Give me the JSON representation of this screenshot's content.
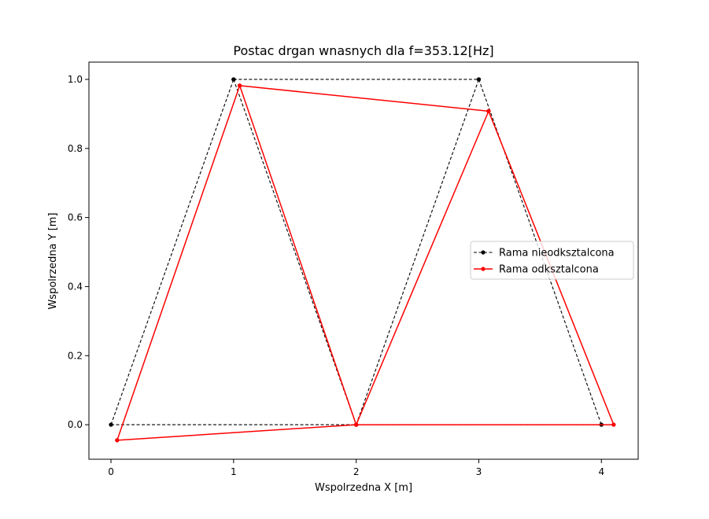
{
  "chart_data": {
    "type": "line",
    "title": "Postac drgan wnasnych dla f=353.12[Hz]",
    "xlabel": "Wspolrzedna X [m]",
    "ylabel": "Wspolrzedna Y [m]",
    "xlim": [
      -0.18,
      4.3
    ],
    "ylim": [
      -0.1,
      1.05
    ],
    "xticks": [
      0,
      1,
      2,
      3,
      4
    ],
    "yticks": [
      0.0,
      0.2,
      0.4,
      0.6,
      0.8,
      1.0
    ],
    "xtick_labels": [
      "0",
      "1",
      "2",
      "3",
      "4"
    ],
    "ytick_labels": [
      "0.0",
      "0.2",
      "0.4",
      "0.6",
      "0.8",
      "1.0"
    ],
    "grid": false,
    "legend_position": "right",
    "series": [
      {
        "name": "Rama nieodksztalcona",
        "color": "#000000",
        "style": "dashed",
        "marker": "circle",
        "segments": [
          [
            [
              0,
              0
            ],
            [
              1,
              1
            ]
          ],
          [
            [
              1,
              1
            ],
            [
              2,
              0
            ]
          ],
          [
            [
              0,
              0
            ],
            [
              2,
              0
            ]
          ],
          [
            [
              2,
              0
            ],
            [
              3,
              1
            ]
          ],
          [
            [
              1,
              1
            ],
            [
              3,
              1
            ]
          ],
          [
            [
              3,
              1
            ],
            [
              4,
              0
            ]
          ],
          [
            [
              2,
              0
            ],
            [
              4,
              0
            ]
          ]
        ]
      },
      {
        "name": "Rama odksztalcona",
        "color": "#ff0000",
        "style": "solid",
        "marker": "circle",
        "segments": [
          [
            [
              0.05,
              -0.045
            ],
            [
              1.05,
              0.982
            ]
          ],
          [
            [
              1.05,
              0.982
            ],
            [
              2.0,
              0.0
            ]
          ],
          [
            [
              0.05,
              -0.045
            ],
            [
              2.0,
              0.0
            ]
          ],
          [
            [
              2.0,
              0.0
            ],
            [
              3.08,
              0.908
            ]
          ],
          [
            [
              1.05,
              0.982
            ],
            [
              3.08,
              0.908
            ]
          ],
          [
            [
              3.08,
              0.908
            ],
            [
              4.1,
              0.0
            ]
          ],
          [
            [
              2.0,
              0.0
            ],
            [
              4.1,
              0.0
            ]
          ]
        ]
      }
    ]
  }
}
